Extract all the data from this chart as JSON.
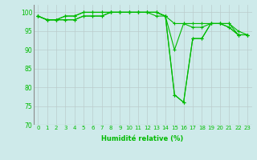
{
  "xlabel": "Humidité relative (%)",
  "background_color": "#ceeaea",
  "grid_color": "#bbcccc",
  "line_color": "#00bb00",
  "marker": "+",
  "ylim": [
    70,
    102
  ],
  "yticks": [
    70,
    75,
    80,
    85,
    90,
    95,
    100
  ],
  "xticks": [
    0,
    1,
    2,
    3,
    4,
    5,
    6,
    7,
    8,
    9,
    10,
    11,
    12,
    13,
    14,
    15,
    16,
    17,
    18,
    19,
    20,
    21,
    22,
    23
  ],
  "series": [
    [
      99,
      98,
      98,
      98,
      98,
      99,
      99,
      99,
      100,
      100,
      100,
      100,
      100,
      100,
      99,
      97,
      97,
      97,
      97,
      97,
      97,
      96,
      94,
      94
    ],
    [
      99,
      98,
      98,
      98,
      98,
      99,
      99,
      99,
      100,
      100,
      100,
      100,
      100,
      100,
      99,
      90,
      97,
      96,
      96,
      97,
      97,
      96,
      94,
      94
    ],
    [
      99,
      98,
      98,
      99,
      99,
      100,
      100,
      100,
      100,
      100,
      100,
      100,
      100,
      100,
      99,
      78,
      76,
      93,
      93,
      97,
      97,
      97,
      94,
      94
    ],
    [
      99,
      98,
      98,
      99,
      99,
      100,
      100,
      100,
      100,
      100,
      100,
      100,
      100,
      99,
      99,
      78,
      76,
      93,
      93,
      97,
      97,
      97,
      95,
      94
    ]
  ]
}
